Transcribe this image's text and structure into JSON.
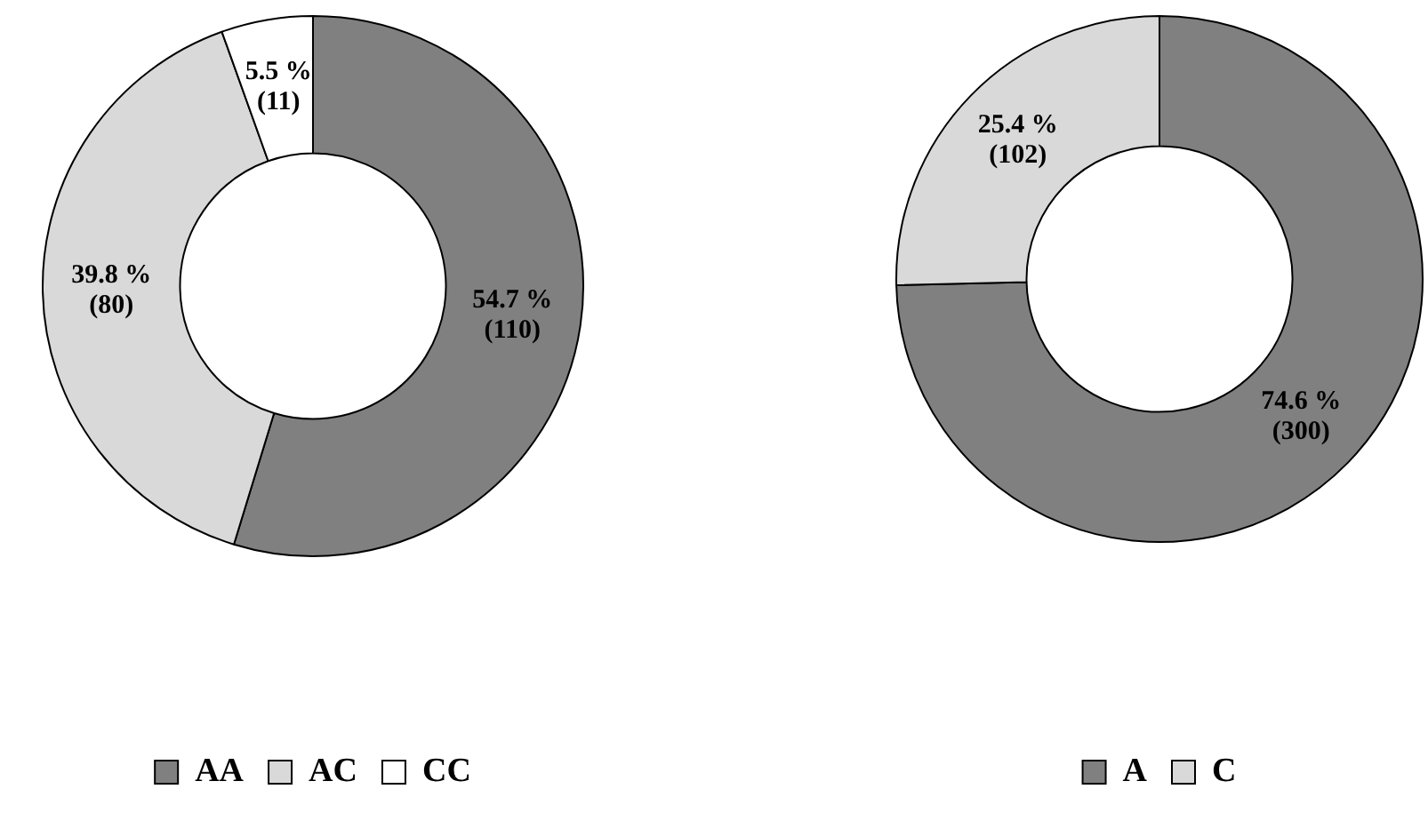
{
  "chart_data": [
    {
      "type": "donut",
      "categories": [
        "AA",
        "AC",
        "CC"
      ],
      "values": [
        110,
        80,
        11
      ],
      "colors": [
        "#808080",
        "#d9d9d9",
        "#ffffff"
      ],
      "value_labels": [
        "54.7 %\n(110)",
        "39.8 %\n(80)",
        "5.5 %\n(11)"
      ],
      "legend": "bottom"
    },
    {
      "type": "donut",
      "categories": [
        "A",
        "C"
      ],
      "values": [
        300,
        102
      ],
      "colors": [
        "#808080",
        "#d9d9d9"
      ],
      "value_labels": [
        "74.6 %\n(300)",
        "25.4 %\n(102)"
      ],
      "legend": "bottom"
    }
  ]
}
